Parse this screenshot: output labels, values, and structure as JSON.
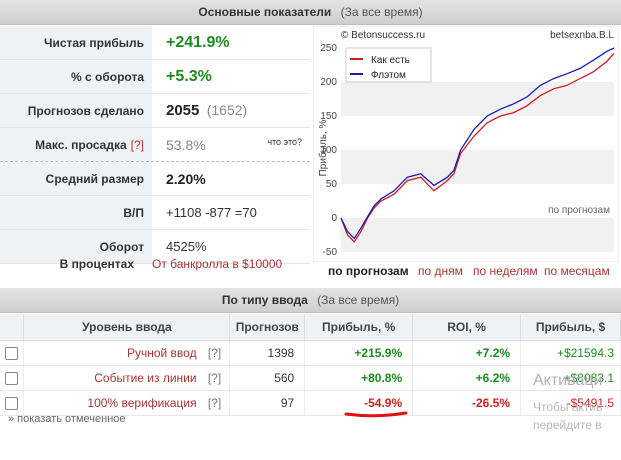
{
  "top_panel": {
    "title": "Основные показатели",
    "subtitle": "(За все время)"
  },
  "stats": {
    "net_profit": {
      "label": "Чистая прибыль",
      "value": "+241.9%"
    },
    "turnover_pct": {
      "label": "% с оборота",
      "value": "+5.3%"
    },
    "predictions": {
      "label": "Прогнозов сделано",
      "value": "2055",
      "extra": "(1652)"
    },
    "max_drawdown": {
      "label": "Макс. просадка",
      "hint": "[?]",
      "value": "53.8%",
      "what": "что это?"
    },
    "avg_size": {
      "label": "Средний размер",
      "value": "2.20%"
    },
    "wl": {
      "label": "В/П",
      "value": "+1108 -877 =70"
    },
    "turnover": {
      "label": "Оборот",
      "value": "4525%"
    },
    "in_percent": {
      "label": "В процентах",
      "value": "От банкролла в $10000"
    }
  },
  "chart": {
    "watermark_left": "© Betonsuccess.ru",
    "watermark_right": "betsexnba.B.L",
    "ylabel": "Прибыль, %",
    "xlabel": "по прогнозам",
    "legend": [
      "Как есть",
      "Флэтом"
    ],
    "colors": {
      "as_is": "#cc1f1f",
      "flat": "#1a1ab8"
    },
    "tabs": [
      "по прогнозам",
      "по дням",
      "по неделям",
      "по месяцам"
    ]
  },
  "chart_data": {
    "type": "line",
    "ylim": [
      -50,
      250
    ],
    "yticks": [
      -50,
      0,
      50,
      100,
      150,
      200,
      250
    ],
    "xlabel": "по прогнозам",
    "ylabel": "Прибыль, %",
    "legend_position": "top-left",
    "series": [
      {
        "name": "Как есть",
        "x": [
          0,
          50,
          100,
          150,
          200,
          250,
          300,
          400,
          500,
          600,
          700,
          800,
          850,
          900,
          1000,
          1100,
          1200,
          1300,
          1400,
          1500,
          1600,
          1700,
          1800,
          1900,
          2000,
          2055
        ],
        "values": [
          0,
          -25,
          -35,
          -20,
          0,
          15,
          25,
          35,
          55,
          60,
          40,
          55,
          65,
          95,
          120,
          140,
          150,
          155,
          165,
          180,
          190,
          195,
          205,
          215,
          230,
          242
        ]
      },
      {
        "name": "Флэтом",
        "x": [
          0,
          50,
          100,
          150,
          200,
          250,
          300,
          400,
          500,
          600,
          700,
          800,
          850,
          900,
          1000,
          1100,
          1200,
          1300,
          1400,
          1500,
          1600,
          1700,
          1800,
          1900,
          2000,
          2055
        ],
        "values": [
          0,
          -20,
          -30,
          -15,
          2,
          18,
          28,
          40,
          60,
          65,
          48,
          60,
          70,
          100,
          130,
          150,
          160,
          168,
          178,
          195,
          205,
          212,
          220,
          232,
          245,
          250
        ]
      }
    ]
  },
  "bottom_panel": {
    "title": "По типу ввода",
    "subtitle": "(За все время)"
  },
  "table": {
    "headers": [
      "Уровень ввода",
      "Прогнозов",
      "Прибыль, %",
      "ROI, %",
      "Прибыль, $"
    ],
    "rows": [
      {
        "level": "Ручной ввод",
        "hint": "[?]",
        "count": "1398",
        "profit_pct": "+215.9%",
        "roi": "+7.2%",
        "profit_usd": "+$21594.3"
      },
      {
        "level": "Событие из линии",
        "hint": "[?]",
        "count": "560",
        "profit_pct": "+80.8%",
        "roi": "+6.2%",
        "profit_usd": "+$8083.1"
      },
      {
        "level": "100% верификация",
        "hint": "[?]",
        "count": "97",
        "profit_pct": "-54.9%",
        "roi": "-26.5%",
        "profit_usd": "-$5491.5"
      }
    ]
  },
  "show_marked": "» показать отмеченное",
  "activation": {
    "title": "Активаци",
    "line1": "Чтобы актив",
    "line2": "перейдите в"
  }
}
